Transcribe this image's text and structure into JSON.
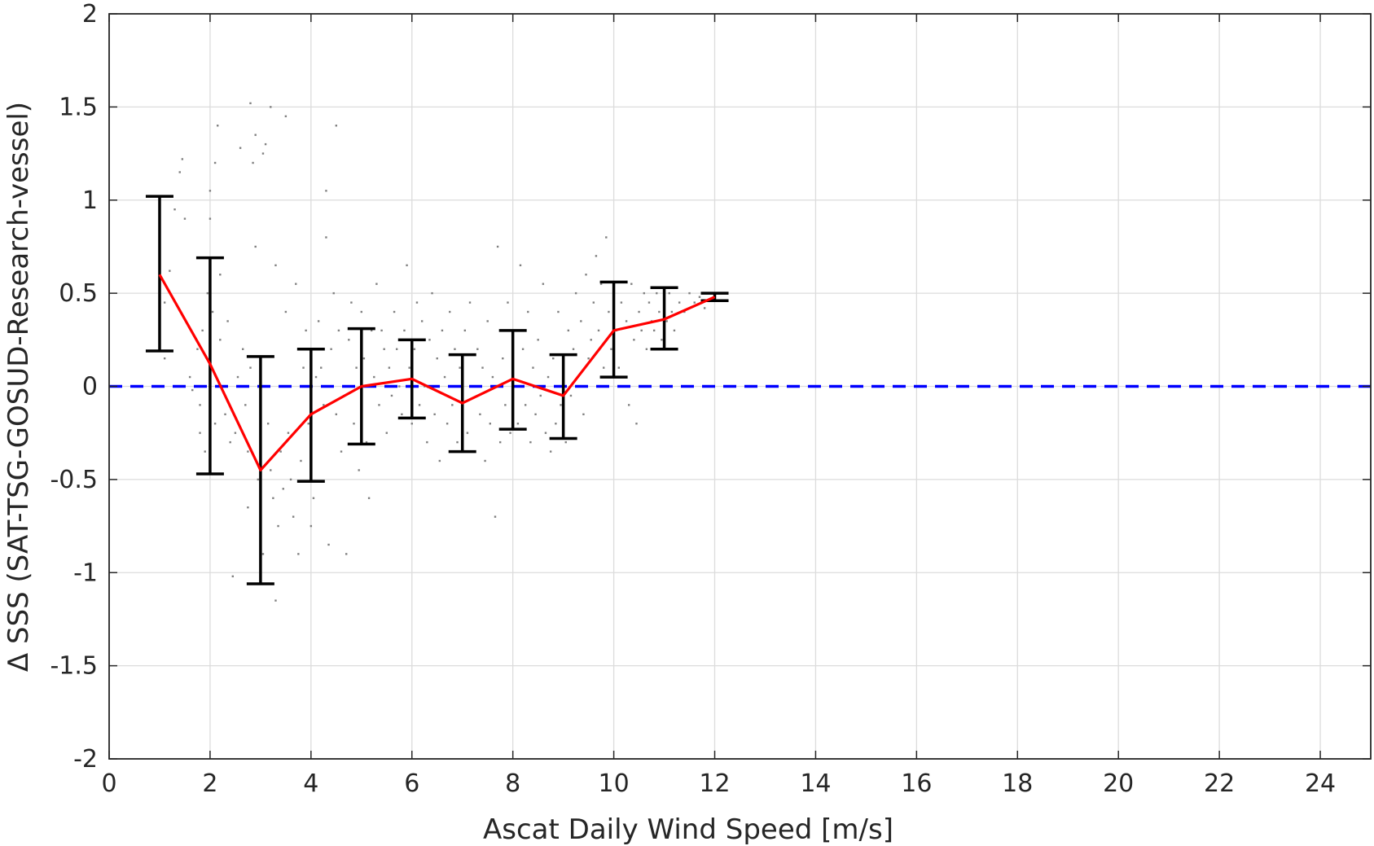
{
  "chart_data": {
    "type": "scatter",
    "title": "",
    "xlabel": "Ascat Daily Wind Speed [m/s]",
    "ylabel": "Δ SSS (SAT-TSG-GOSUD-Research-vessel)",
    "xlim": [
      0,
      25
    ],
    "ylim": [
      -2,
      2
    ],
    "x_ticks": [
      0,
      2,
      4,
      6,
      8,
      10,
      12,
      14,
      16,
      18,
      20,
      22,
      24
    ],
    "y_ticks": [
      -2,
      -1.5,
      -1,
      -0.5,
      0,
      0.5,
      1,
      1.5,
      2
    ],
    "y_tick_labels": [
      "-2",
      "-1.5",
      "-1",
      "-0.5",
      "0",
      "0.5",
      "1",
      "1.5",
      "2"
    ],
    "grid": true,
    "series": [
      {
        "kind": "scatter-cloud",
        "color": "#808080",
        "points": [
          [
            1.1,
            0.45
          ],
          [
            1.1,
            0.15
          ],
          [
            1.2,
            0.62
          ],
          [
            1.3,
            0.95
          ],
          [
            1.4,
            1.15
          ],
          [
            1.45,
            1.22
          ],
          [
            1.5,
            0.9
          ],
          [
            1.6,
            0.05
          ],
          [
            1.65,
            -0.02
          ],
          [
            1.75,
            0.2
          ],
          [
            1.8,
            -0.1
          ],
          [
            1.8,
            -0.25
          ],
          [
            1.85,
            0.3
          ],
          [
            1.9,
            -0.35
          ],
          [
            1.95,
            0.5
          ],
          [
            2.0,
            0.9
          ],
          [
            2.0,
            1.05
          ],
          [
            2.05,
            0.4
          ],
          [
            2.1,
            1.2
          ],
          [
            2.1,
            -0.2
          ],
          [
            2.15,
            1.4
          ],
          [
            2.2,
            0.6
          ],
          [
            2.2,
            0.25
          ],
          [
            2.25,
            0.0
          ],
          [
            2.3,
            -0.15
          ],
          [
            2.35,
            0.35
          ],
          [
            2.4,
            -0.3
          ],
          [
            2.45,
            -1.02
          ],
          [
            2.5,
            -0.25
          ],
          [
            2.55,
            0.05
          ],
          [
            2.6,
            1.28
          ],
          [
            2.65,
            0.2
          ],
          [
            2.7,
            -0.1
          ],
          [
            2.75,
            -0.35
          ],
          [
            2.75,
            -0.65
          ],
          [
            2.8,
            1.52
          ],
          [
            2.8,
            0.1
          ],
          [
            2.85,
            1.2
          ],
          [
            2.9,
            0.75
          ],
          [
            2.9,
            1.35
          ],
          [
            2.95,
            -0.5
          ],
          [
            3.0,
            -0.8
          ],
          [
            3.0,
            -0.3
          ],
          [
            3.05,
            -0.9
          ],
          [
            3.05,
            1.25
          ],
          [
            3.1,
            1.3
          ],
          [
            3.1,
            0.0
          ],
          [
            3.15,
            -0.2
          ],
          [
            3.2,
            -0.45
          ],
          [
            3.2,
            1.5
          ],
          [
            3.25,
            -0.6
          ],
          [
            3.3,
            -1.15
          ],
          [
            3.3,
            0.65
          ],
          [
            3.35,
            -0.75
          ],
          [
            3.4,
            -0.35
          ],
          [
            3.45,
            -0.55
          ],
          [
            3.5,
            1.45
          ],
          [
            3.5,
            0.4
          ],
          [
            3.55,
            -0.25
          ],
          [
            3.6,
            -0.5
          ],
          [
            3.65,
            -0.7
          ],
          [
            3.7,
            0.55
          ],
          [
            3.75,
            -0.9
          ],
          [
            3.8,
            -0.4
          ],
          [
            3.85,
            0.1
          ],
          [
            3.9,
            0.3
          ],
          [
            3.95,
            -0.2
          ],
          [
            4.0,
            -0.75
          ],
          [
            4.05,
            -0.6
          ],
          [
            4.1,
            0.05
          ],
          [
            4.15,
            0.35
          ],
          [
            4.2,
            0.1
          ],
          [
            4.25,
            -0.1
          ],
          [
            4.3,
            0.8
          ],
          [
            4.3,
            1.05
          ],
          [
            4.35,
            -0.85
          ],
          [
            4.4,
            0.2
          ],
          [
            4.45,
            0.5
          ],
          [
            4.5,
            1.4
          ],
          [
            4.5,
            -0.15
          ],
          [
            4.55,
            0.3
          ],
          [
            4.6,
            -0.35
          ],
          [
            4.65,
            0.0
          ],
          [
            4.7,
            -0.9
          ],
          [
            4.75,
            0.25
          ],
          [
            4.8,
            0.45
          ],
          [
            4.85,
            -0.2
          ],
          [
            4.9,
            0.1
          ],
          [
            4.95,
            -0.45
          ],
          [
            5.0,
            0.4
          ],
          [
            5.05,
            0.15
          ],
          [
            5.1,
            -0.3
          ],
          [
            5.15,
            -0.6
          ],
          [
            5.2,
            0.3
          ],
          [
            5.25,
            0.05
          ],
          [
            5.3,
            0.55
          ],
          [
            5.35,
            -0.1
          ],
          [
            5.4,
            0.3
          ],
          [
            5.45,
            0.2
          ],
          [
            5.5,
            -0.25
          ],
          [
            5.55,
            0.1
          ],
          [
            5.6,
            -0.05
          ],
          [
            5.65,
            0.4
          ],
          [
            5.7,
            0.2
          ],
          [
            5.75,
            0.0
          ],
          [
            5.8,
            -0.15
          ],
          [
            5.85,
            0.3
          ],
          [
            5.9,
            0.65
          ],
          [
            5.95,
            0.1
          ],
          [
            6.0,
            -0.2
          ],
          [
            6.05,
            0.2
          ],
          [
            6.1,
            0.45
          ],
          [
            6.15,
            -0.1
          ],
          [
            6.2,
            0.35
          ],
          [
            6.25,
            0.0
          ],
          [
            6.3,
            -0.3
          ],
          [
            6.35,
            0.25
          ],
          [
            6.4,
            0.5
          ],
          [
            6.45,
            -0.15
          ],
          [
            6.5,
            0.15
          ],
          [
            6.55,
            -0.4
          ],
          [
            6.6,
            0.3
          ],
          [
            6.65,
            0.05
          ],
          [
            6.7,
            -0.2
          ],
          [
            6.75,
            0.4
          ],
          [
            6.8,
            -0.1
          ],
          [
            6.85,
            0.2
          ],
          [
            6.9,
            -0.3
          ],
          [
            6.95,
            0.1
          ],
          [
            7.0,
            -0.05
          ],
          [
            7.05,
            0.3
          ],
          [
            7.1,
            -0.25
          ],
          [
            7.15,
            0.45
          ],
          [
            7.2,
            -0.35
          ],
          [
            7.25,
            0.0
          ],
          [
            7.3,
            0.2
          ],
          [
            7.35,
            -0.15
          ],
          [
            7.4,
            0.1
          ],
          [
            7.45,
            -0.4
          ],
          [
            7.5,
            0.35
          ],
          [
            7.55,
            -0.2
          ],
          [
            7.6,
            0.05
          ],
          [
            7.65,
            -0.7
          ],
          [
            7.7,
            0.75
          ],
          [
            7.75,
            -0.3
          ],
          [
            7.8,
            0.15
          ],
          [
            7.85,
            -0.1
          ],
          [
            7.9,
            0.45
          ],
          [
            7.95,
            -0.25
          ],
          [
            8.0,
            0.3
          ],
          [
            8.05,
            0.0
          ],
          [
            8.1,
            -0.2
          ],
          [
            8.15,
            0.65
          ],
          [
            8.2,
            0.2
          ],
          [
            8.25,
            -0.1
          ],
          [
            8.3,
            0.4
          ],
          [
            8.35,
            -0.3
          ],
          [
            8.4,
            0.1
          ],
          [
            8.45,
            -0.15
          ],
          [
            8.5,
            0.25
          ],
          [
            8.55,
            -0.05
          ],
          [
            8.6,
            0.55
          ],
          [
            8.65,
            -0.25
          ],
          [
            8.7,
            0.05
          ],
          [
            8.75,
            -0.35
          ],
          [
            8.8,
            0.15
          ],
          [
            8.85,
            -0.2
          ],
          [
            8.9,
            0.4
          ],
          [
            8.95,
            -0.1
          ],
          [
            9.0,
            0.1
          ],
          [
            9.05,
            -0.3
          ],
          [
            9.1,
            0.3
          ],
          [
            9.15,
            -0.05
          ],
          [
            9.2,
            0.2
          ],
          [
            9.25,
            0.5
          ],
          [
            9.3,
            0.0
          ],
          [
            9.35,
            0.35
          ],
          [
            9.4,
            -0.15
          ],
          [
            9.45,
            0.6
          ],
          [
            9.5,
            0.15
          ],
          [
            9.55,
            0.25
          ],
          [
            9.6,
            0.45
          ],
          [
            9.65,
            0.7
          ],
          [
            9.7,
            0.3
          ],
          [
            9.75,
            0.55
          ],
          [
            9.8,
            0.1
          ],
          [
            9.85,
            0.8
          ],
          [
            9.9,
            0.4
          ],
          [
            9.95,
            0.2
          ],
          [
            10.0,
            0.5
          ],
          [
            10.05,
            0.3
          ],
          [
            10.1,
            0.1
          ],
          [
            10.15,
            0.45
          ],
          [
            10.2,
            0.0
          ],
          [
            10.25,
            0.35
          ],
          [
            10.3,
            -0.1
          ],
          [
            10.35,
            0.55
          ],
          [
            10.4,
            0.25
          ],
          [
            10.45,
            -0.2
          ],
          [
            10.5,
            0.4
          ],
          [
            10.55,
            0.3
          ],
          [
            10.6,
            0.5
          ],
          [
            10.65,
            0.2
          ],
          [
            10.7,
            0.45
          ],
          [
            10.75,
            0.35
          ],
          [
            10.8,
            0.3
          ],
          [
            10.85,
            0.5
          ],
          [
            10.9,
            0.4
          ],
          [
            10.95,
            0.25
          ],
          [
            11.0,
            0.45
          ],
          [
            11.05,
            0.35
          ],
          [
            11.1,
            0.5
          ],
          [
            11.15,
            0.4
          ],
          [
            11.2,
            0.3
          ],
          [
            11.3,
            0.45
          ],
          [
            11.4,
            0.4
          ],
          [
            11.5,
            0.5
          ],
          [
            11.6,
            0.45
          ],
          [
            11.7,
            0.48
          ],
          [
            11.8,
            0.42
          ]
        ]
      },
      {
        "kind": "line",
        "color": "#ff0000",
        "x": [
          1,
          2,
          3,
          4,
          5,
          6,
          7,
          8,
          9,
          10,
          11,
          12
        ],
        "y": [
          0.6,
          0.12,
          -0.45,
          -0.15,
          0.0,
          0.04,
          -0.09,
          0.04,
          -0.05,
          0.3,
          0.36,
          0.48
        ]
      },
      {
        "kind": "errorbars",
        "color": "#000000",
        "x": [
          1,
          2,
          3,
          4,
          5,
          6,
          7,
          8,
          9,
          10,
          11,
          12
        ],
        "low": [
          0.19,
          -0.47,
          -1.06,
          -0.51,
          -0.31,
          -0.17,
          -0.35,
          -0.23,
          -0.28,
          0.05,
          0.2,
          0.46
        ],
        "high": [
          1.02,
          0.69,
          0.16,
          0.2,
          0.31,
          0.25,
          0.17,
          0.3,
          0.17,
          0.56,
          0.53,
          0.5
        ]
      },
      {
        "kind": "reference-line",
        "color": "#0000ff",
        "style": "dashed",
        "y": 0
      }
    ]
  }
}
